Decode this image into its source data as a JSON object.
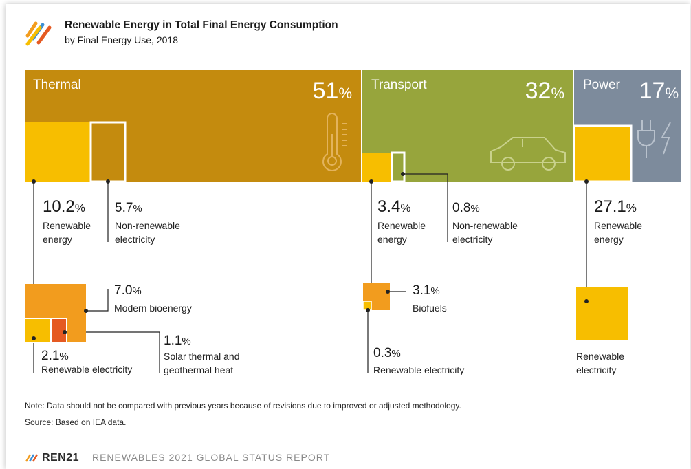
{
  "title": "Renewable Energy in Total Final Energy Consumption",
  "subtitle": "by Final Energy Use, 2018",
  "colors": {
    "thermal": "#c48b0e",
    "transport": "#97a53c",
    "power": "#7d8b9c",
    "renewable": "#f7be00",
    "bioenergy": "#f29c1e",
    "solar": "#e55a22"
  },
  "chart_data": {
    "type": "treemap",
    "categories": [
      {
        "name": "Thermal",
        "percent": "51",
        "unit": "%",
        "segments": [
          {
            "value": "10.2",
            "unit": "%",
            "label_line1": "Renewable",
            "label_line2": "energy"
          },
          {
            "value": "5.7",
            "unit": "%",
            "label_line1": "Non-renewable",
            "label_line2": "electricity"
          }
        ],
        "breakdown": [
          {
            "value": "7.0",
            "unit": "%",
            "label_line1": "Modern bioenergy",
            "label_line2": ""
          },
          {
            "value": "2.1",
            "unit": "%",
            "label_line1": "Renewable electricity",
            "label_line2": ""
          },
          {
            "value": "1.1",
            "unit": "%",
            "label_line1": "Solar thermal and",
            "label_line2": "geothermal heat"
          }
        ]
      },
      {
        "name": "Transport",
        "percent": "32",
        "unit": "%",
        "segments": [
          {
            "value": "3.4",
            "unit": "%",
            "label_line1": "Renewable",
            "label_line2": "energy"
          },
          {
            "value": "0.8",
            "unit": "%",
            "label_line1": "Non-renewable",
            "label_line2": "electricity"
          }
        ],
        "breakdown": [
          {
            "value": "3.1",
            "unit": "%",
            "label_line1": "Biofuels",
            "label_line2": ""
          },
          {
            "value": "0.3",
            "unit": "%",
            "label_line1": "Renewable electricity",
            "label_line2": ""
          }
        ]
      },
      {
        "name": "Power",
        "percent": "17",
        "unit": "%",
        "segments": [
          {
            "value": "27.1",
            "unit": "%",
            "label_line1": "Renewable",
            "label_line2": "energy"
          }
        ],
        "breakdown": [
          {
            "value": "",
            "unit": "",
            "label_line1": "Renewable",
            "label_line2": "electricity"
          }
        ]
      }
    ]
  },
  "notes": {
    "note": "Note: Data should not be compared with previous years because of revisions due to improved or adjusted methodology.",
    "source": "Source: Based on IEA data."
  },
  "footer": {
    "brand": "REN21",
    "report": "RENEWABLES 2021 GLOBAL STATUS REPORT"
  }
}
